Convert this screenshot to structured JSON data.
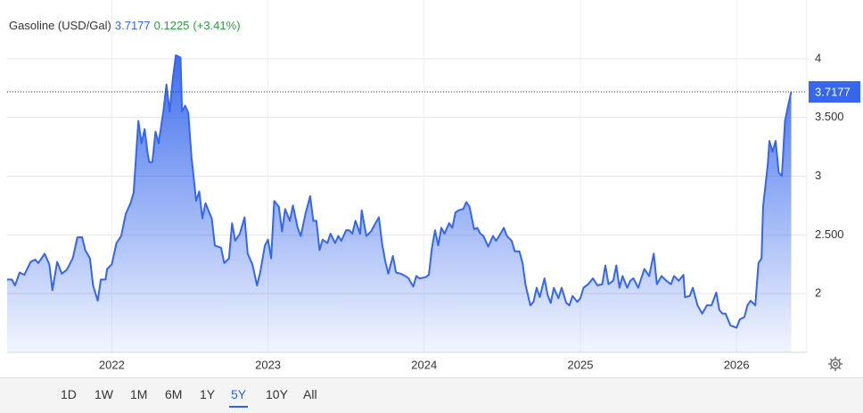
{
  "chart_data": {
    "type": "area",
    "title": "Gasoline (USD/Gal)",
    "last": 3.7177,
    "change": 0.1225,
    "change_label": "(+3.41%)",
    "color": "#3566ec",
    "up_color": "#2a9d3f",
    "x": [
      2021.33,
      2021.36,
      2021.38,
      2021.41,
      2021.44,
      2021.48,
      2021.51,
      2021.53,
      2021.57,
      2021.6,
      2021.62,
      2021.65,
      2021.68,
      2021.71,
      2021.75,
      2021.78,
      2021.81,
      2021.83,
      2021.86,
      2021.88,
      2021.91,
      2021.93,
      2021.96,
      2021.97,
      2022.0,
      2022.03,
      2022.06,
      2022.09,
      2022.12,
      2022.14,
      2022.17,
      2022.19,
      2022.21,
      2022.23,
      2022.24,
      2022.26,
      2022.28,
      2022.3,
      2022.33,
      2022.35,
      2022.37,
      2022.39,
      2022.41,
      2022.44,
      2022.45,
      2022.47,
      2022.49,
      2022.51,
      2022.54,
      2022.56,
      2022.58,
      2022.6,
      2022.64,
      2022.66,
      2022.7,
      2022.72,
      2022.75,
      2022.77,
      2022.79,
      2022.82,
      2022.85,
      2022.87,
      2022.9,
      2022.93,
      2022.95,
      2022.98,
      2023.0,
      2023.02,
      2023.04,
      2023.07,
      2023.09,
      2023.11,
      2023.14,
      2023.16,
      2023.19,
      2023.21,
      2023.24,
      2023.27,
      2023.29,
      2023.31,
      2023.33,
      2023.35,
      2023.38,
      2023.4,
      2023.43,
      2023.45,
      2023.47,
      2023.5,
      2023.52,
      2023.54,
      2023.56,
      2023.59,
      2023.6,
      2023.63,
      2023.66,
      2023.68,
      2023.71,
      2023.73,
      2023.75,
      2023.77,
      2023.8,
      2023.82,
      2023.85,
      2023.88,
      2023.9,
      2023.93,
      2023.95,
      2023.97,
      2024.01,
      2024.03,
      2024.05,
      2024.07,
      2024.09,
      2024.11,
      2024.13,
      2024.16,
      2024.18,
      2024.2,
      2024.22,
      2024.25,
      2024.27,
      2024.29,
      2024.32,
      2024.34,
      2024.36,
      2024.38,
      2024.41,
      2024.44,
      2024.46,
      2024.48,
      2024.51,
      2024.53,
      2024.56,
      2024.58,
      2024.61,
      2024.63,
      2024.65,
      2024.68,
      2024.7,
      2024.72,
      2024.74,
      2024.77,
      2024.79,
      2024.81,
      2024.83,
      2024.86,
      2024.88,
      2024.91,
      2024.93,
      2024.95,
      2024.98,
      2025.0,
      2025.02,
      2025.05,
      2025.08,
      2025.11,
      2025.14,
      2025.16,
      2025.18,
      2025.21,
      2025.23,
      2025.25,
      2025.27,
      2025.3,
      2025.32,
      2025.34,
      2025.37,
      2025.39,
      2025.41,
      2025.44,
      2025.47,
      2025.49,
      2025.52,
      2025.55,
      2025.58,
      2025.6,
      2025.63,
      2025.66,
      2025.67,
      2025.7,
      2025.72,
      2025.75,
      2025.78,
      2025.81,
      2025.84,
      2025.87,
      2025.89,
      2025.91,
      2025.93,
      2025.96,
      2026.0,
      2026.02,
      2026.05,
      2026.07,
      2026.09,
      2026.12,
      2026.14,
      2026.16,
      2026.17,
      2026.2,
      2026.21,
      2026.23,
      2026.25,
      2026.27,
      2026.29,
      2026.31,
      2026.33,
      2026.35
    ],
    "values": [
      2.12,
      2.12,
      2.07,
      2.18,
      2.16,
      2.27,
      2.29,
      2.26,
      2.34,
      2.25,
      2.03,
      2.27,
      2.17,
      2.2,
      2.3,
      2.48,
      2.48,
      2.37,
      2.3,
      2.07,
      1.94,
      2.12,
      2.12,
      2.21,
      2.25,
      2.43,
      2.49,
      2.68,
      2.77,
      2.86,
      3.47,
      3.28,
      3.4,
      3.19,
      3.12,
      3.12,
      3.38,
      3.28,
      3.55,
      3.78,
      3.55,
      3.82,
      4.03,
      4.01,
      3.55,
      3.6,
      3.54,
      3.17,
      2.79,
      2.87,
      2.64,
      2.77,
      2.64,
      2.41,
      2.39,
      2.26,
      2.3,
      2.6,
      2.45,
      2.51,
      2.65,
      2.34,
      2.25,
      2.07,
      2.18,
      2.41,
      2.46,
      2.3,
      2.79,
      2.74,
      2.53,
      2.72,
      2.62,
      2.75,
      2.56,
      2.49,
      2.68,
      2.83,
      2.62,
      2.62,
      2.37,
      2.46,
      2.43,
      2.51,
      2.43,
      2.49,
      2.45,
      2.54,
      2.54,
      2.51,
      2.62,
      2.51,
      2.71,
      2.49,
      2.53,
      2.58,
      2.65,
      2.43,
      2.28,
      2.17,
      2.32,
      2.18,
      2.17,
      2.15,
      2.13,
      2.06,
      2.15,
      2.13,
      2.14,
      2.16,
      2.39,
      2.54,
      2.41,
      2.56,
      2.51,
      2.6,
      2.56,
      2.69,
      2.71,
      2.72,
      2.78,
      2.74,
      2.55,
      2.56,
      2.51,
      2.49,
      2.4,
      2.49,
      2.45,
      2.49,
      2.56,
      2.49,
      2.45,
      2.36,
      2.36,
      2.26,
      2.07,
      1.9,
      1.93,
      2.05,
      1.97,
      2.13,
      1.99,
      1.92,
      2.05,
      1.96,
      2.05,
      1.92,
      1.9,
      1.98,
      1.93,
      1.96,
      2.05,
      2.08,
      2.13,
      2.07,
      2.08,
      2.24,
      2.08,
      2.11,
      2.24,
      2.05,
      2.15,
      2.05,
      2.11,
      2.13,
      2.05,
      2.13,
      2.21,
      2.15,
      2.34,
      2.08,
      2.15,
      2.11,
      2.08,
      2.15,
      2.11,
      2.16,
      1.97,
      1.98,
      2.05,
      1.9,
      1.83,
      1.9,
      1.9,
      2.01,
      1.86,
      1.83,
      1.83,
      1.73,
      1.71,
      1.78,
      1.8,
      1.9,
      1.94,
      1.9,
      2.26,
      2.3,
      2.74,
      3.1,
      3.3,
      3.21,
      3.3,
      3.03,
      3.0,
      3.47,
      3.6,
      3.7177
    ],
    "xlim": [
      2021.33,
      2026.45
    ],
    "xticks": [
      2022,
      2023,
      2024,
      2025,
      2026
    ],
    "ylim": [
      1.5,
      4.5
    ],
    "yticks": [
      4,
      {
        "value": 3.5,
        "label": "3.500"
      },
      3,
      {
        "value": 2.5,
        "label": "2.500"
      },
      2
    ],
    "grid": true
  },
  "toolbar": {
    "ranges": [
      "1D",
      "1W",
      "1M",
      "6M",
      "1Y",
      "5Y",
      "10Y",
      "All"
    ],
    "selected": "5Y"
  }
}
